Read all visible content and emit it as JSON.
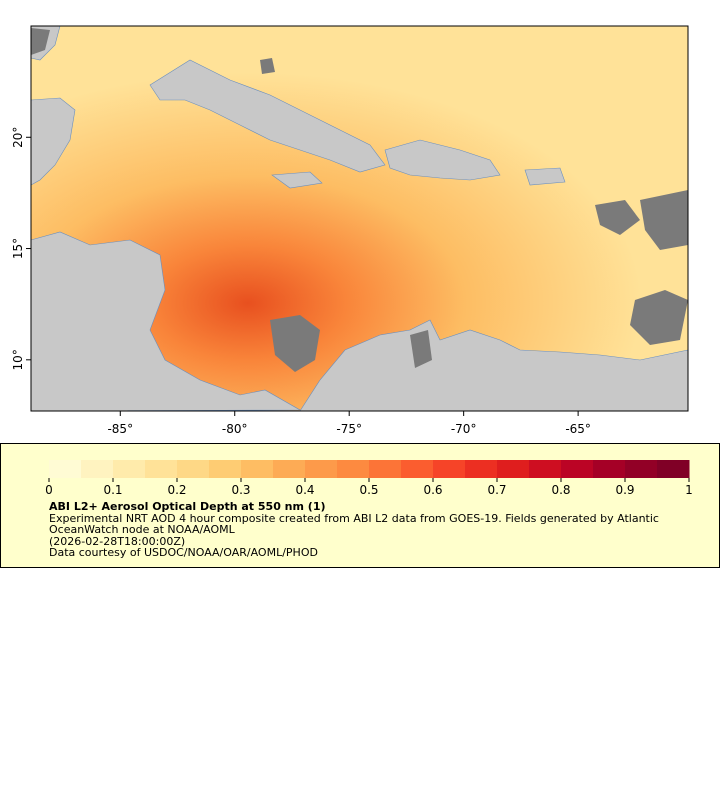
{
  "map": {
    "xlim": [
      -88.9,
      -60.2
    ],
    "ylim": [
      7.7,
      25
    ],
    "xticks": [
      {
        "value": -85,
        "label": "-85°"
      },
      {
        "value": -80,
        "label": "-80°"
      },
      {
        "value": -75,
        "label": "-75°"
      },
      {
        "value": -70,
        "label": "-70°"
      },
      {
        "value": -65,
        "label": "-65°"
      }
    ],
    "yticks": [
      {
        "value": 10,
        "label": "10°"
      },
      {
        "value": 15,
        "label": "15°"
      },
      {
        "value": 20,
        "label": "20°"
      }
    ],
    "colorbar": {
      "vlim": [
        0,
        1
      ],
      "ticks": [
        0,
        0.1,
        0.2,
        0.3,
        0.4,
        0.5,
        0.6,
        0.7,
        0.8,
        0.9,
        1
      ],
      "colors": [
        "#fffbd4",
        "#fff3c0",
        "#ffebab",
        "#ffe298",
        "#fed886",
        "#fecc73",
        "#febd63",
        "#fdab55",
        "#fd9a4a",
        "#fd8a40",
        "#fc7437",
        "#fb5d2f",
        "#f64428",
        "#ec2f22",
        "#df1e1e",
        "#ce0e21",
        "#bb0425",
        "#a50026",
        "#920026",
        "#800026"
      ]
    },
    "title": "ABI L2+ Aerosol Optical Depth at 550 nm (1)",
    "description": "Experimental NRT AOD 4 hour composite created from ABI L2 data from GOES-19. Fields generated by Atlantic OceanWatch node at NOAA/AOML",
    "timestamp": "(2026-02-28T18:00:00Z)",
    "credit": "Data courtesy of USDOC/NOAA/OAR/AOML/PHOD"
  }
}
